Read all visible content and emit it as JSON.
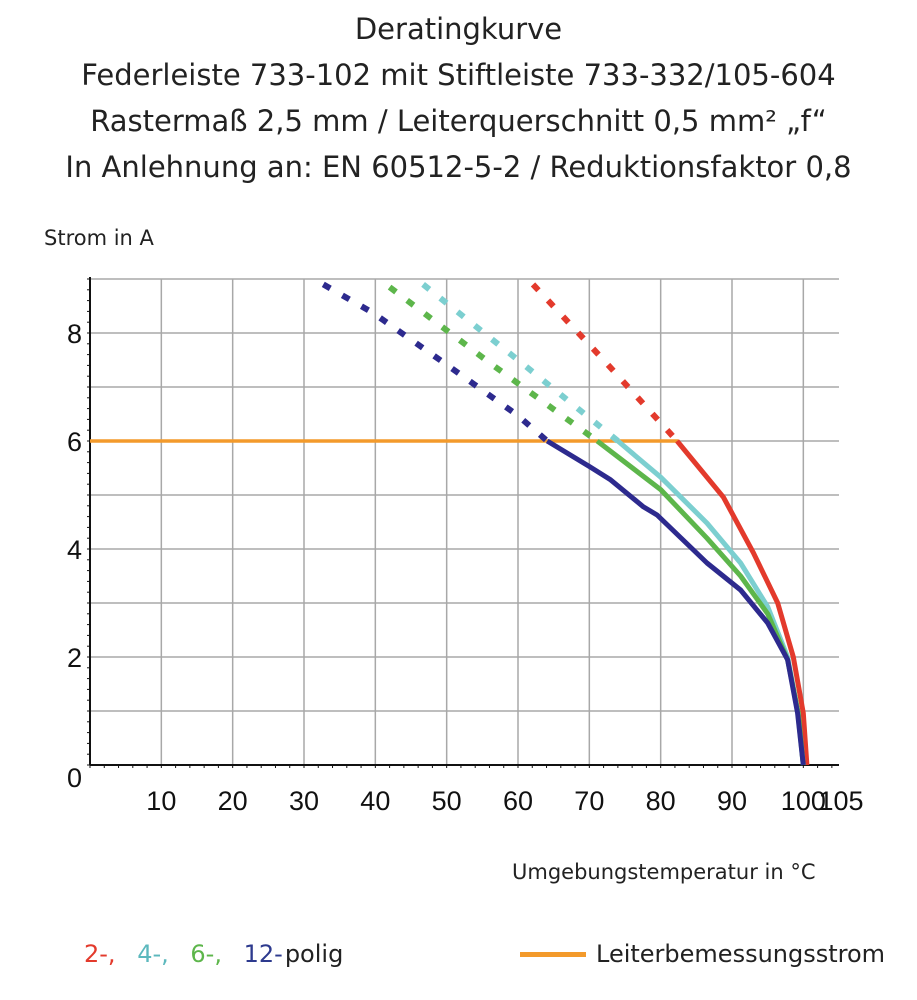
{
  "title_lines": [
    "Deratingkurve",
    "Federleiste 733-102 mit Stiftleiste 733-332/105-604",
    "Rastermaß 2,5 mm / Leiterquerschnitt 0,5 mm² „f“",
    "In Anlehnung an: EN 60512-5-2 / Reduktionsfaktor 0,8"
  ],
  "chart_data": {
    "type": "line",
    "title": "Deratingkurve",
    "xlabel": "Umgebungstemperatur in °C",
    "ylabel": "Strom in A",
    "xlim": [
      0,
      105
    ],
    "ylim": [
      0,
      9
    ],
    "x_ticks": [
      10,
      20,
      30,
      40,
      50,
      60,
      70,
      80,
      90,
      100,
      105
    ],
    "y_ticks": [
      0,
      2,
      4,
      6,
      8
    ],
    "grid": true,
    "legend_placement": "bottom",
    "legend": {
      "poles": [
        "2-,",
        "4-,",
        "6-,",
        "12-"
      ],
      "poles_suffix": "polig",
      "rated_current": "Leiterbemessungsstrom"
    },
    "rated_current": {
      "value": 6,
      "x": [
        0,
        82.5
      ],
      "color": "#f39a2b"
    },
    "series": [
      {
        "label": "2-",
        "color": "#e33a2c",
        "dashed": [
          [
            62.1,
            8.9
          ],
          [
            72,
            7.5
          ],
          [
            82.3,
            6
          ]
        ],
        "solid": [
          [
            82.3,
            6
          ],
          [
            88.8,
            4.96
          ],
          [
            93,
            3.93
          ],
          [
            96.4,
            3.0
          ],
          [
            98.6,
            2.0
          ],
          [
            100,
            0.96
          ],
          [
            100.5,
            0
          ]
        ]
      },
      {
        "label": "4-",
        "color": "#7ccfd0",
        "dashed": [
          [
            46.7,
            8.9
          ],
          [
            60,
            7.5
          ],
          [
            74,
            6
          ]
        ],
        "solid": [
          [
            74,
            6
          ],
          [
            80,
            5.33
          ],
          [
            86.5,
            4.48
          ],
          [
            91.2,
            3.74
          ],
          [
            95,
            2.93
          ],
          [
            97.8,
            2.0
          ],
          [
            99.2,
            1.0
          ],
          [
            100,
            0
          ]
        ]
      },
      {
        "label": "6-",
        "color": "#5db64b",
        "dashed": [
          [
            42,
            8.85
          ],
          [
            56,
            7.45
          ],
          [
            71.1,
            6
          ]
        ],
        "solid": [
          [
            71.1,
            6
          ],
          [
            80,
            5.1
          ],
          [
            86.5,
            4.2
          ],
          [
            91.2,
            3.5
          ],
          [
            95,
            2.8
          ],
          [
            97.8,
            1.95
          ],
          [
            99.3,
            0.96
          ],
          [
            100,
            0
          ]
        ]
      },
      {
        "label": "12-",
        "color": "#2d2a8e",
        "dashed": [
          [
            32.7,
            8.9
          ],
          [
            39.7,
            8.37
          ],
          [
            49.5,
            7.46
          ],
          [
            59.9,
            6.48
          ],
          [
            64.1,
            6
          ]
        ],
        "solid": [
          [
            64.1,
            6
          ],
          [
            70.1,
            5.52
          ],
          [
            73,
            5.28
          ],
          [
            77.6,
            4.78
          ],
          [
            79.5,
            4.63
          ],
          [
            86.5,
            3.74
          ],
          [
            91.2,
            3.24
          ],
          [
            95,
            2.63
          ],
          [
            97.8,
            1.95
          ],
          [
            99.2,
            0.96
          ],
          [
            100,
            0
          ]
        ]
      }
    ]
  }
}
